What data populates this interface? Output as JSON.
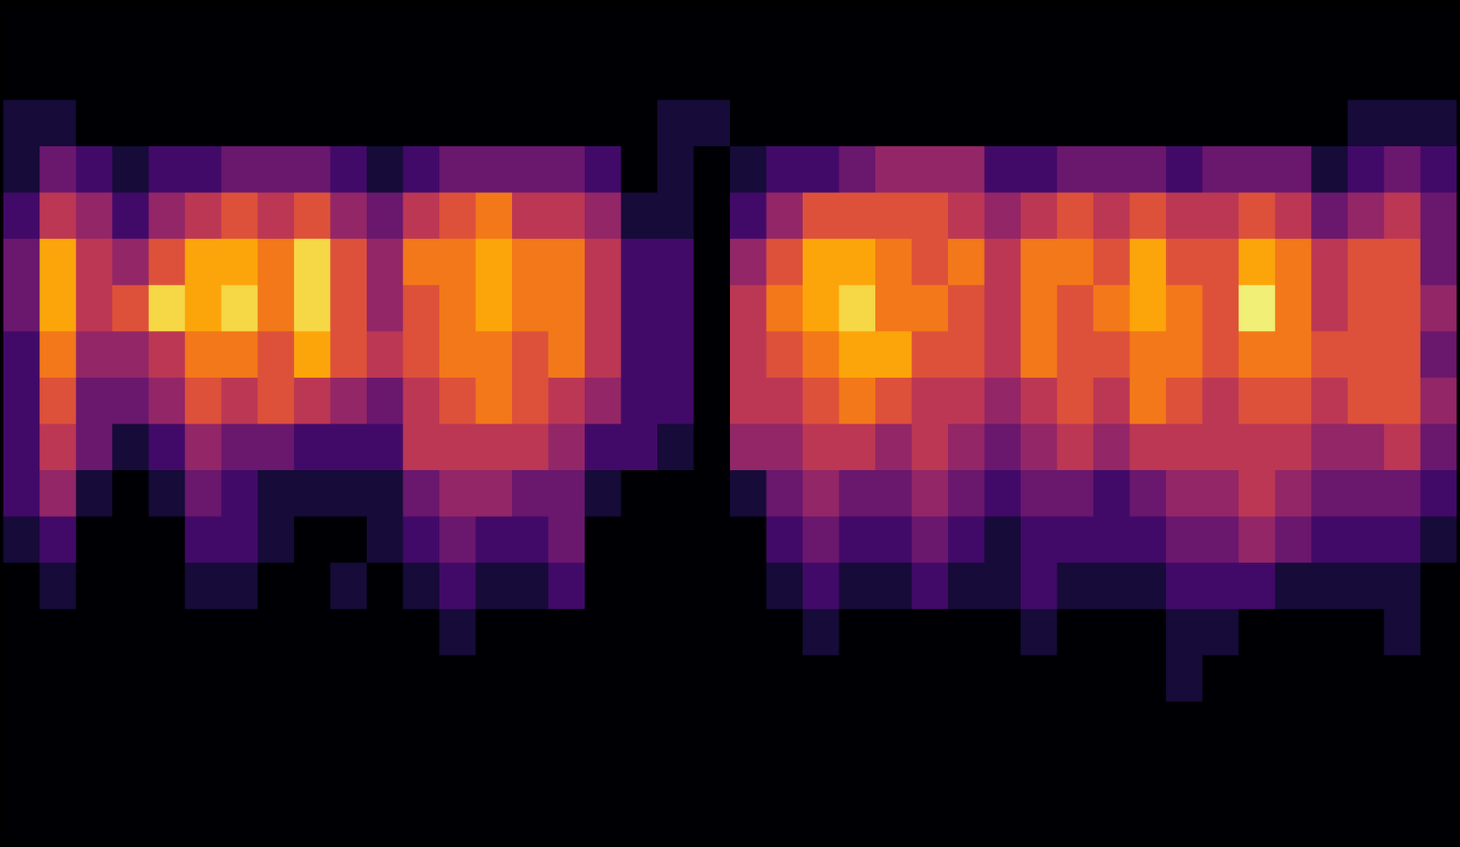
{
  "chart_data": {
    "type": "heatmap",
    "color": "inferno",
    "tick_labels": false,
    "grid": false,
    "zlim": [
      0,
      1
    ],
    "cells": [
      [
        0,
        0,
        0,
        0,
        0,
        0,
        0,
        0,
        0,
        0,
        0,
        0,
        0,
        0,
        0,
        0,
        0,
        0,
        0,
        0,
        0,
        0,
        0,
        0,
        0,
        0,
        0,
        0,
        0,
        0,
        0,
        0,
        0,
        0,
        0,
        0,
        0,
        0,
        0,
        0
      ],
      [
        0,
        0,
        0,
        0,
        0,
        0,
        0,
        0,
        0,
        0,
        0,
        0,
        0,
        0,
        0,
        0,
        0,
        0,
        0,
        0,
        0,
        0,
        0,
        0,
        0,
        0,
        0,
        0,
        0,
        0,
        0,
        0,
        0,
        0,
        0,
        0,
        0,
        0,
        0,
        0
      ],
      [
        0.1,
        0.1,
        0,
        0,
        0,
        0,
        0,
        0,
        0,
        0,
        0,
        0,
        0,
        0,
        0,
        0,
        0,
        0,
        0.1,
        0.1,
        0,
        0,
        0,
        0,
        0,
        0,
        0,
        0,
        0,
        0,
        0,
        0,
        0,
        0,
        0,
        0,
        0,
        0.1,
        0.1,
        0.1
      ],
      [
        0.1,
        0.3,
        0.2,
        0.1,
        0.2,
        0.2,
        0.3,
        0.3,
        0.3,
        0.2,
        0.1,
        0.2,
        0.3,
        0.3,
        0.3,
        0.3,
        0.2,
        0,
        0.1,
        0,
        0.1,
        0.2,
        0.2,
        0.3,
        0.4,
        0.4,
        0.4,
        0.2,
        0.2,
        0.3,
        0.3,
        0.3,
        0.2,
        0.3,
        0.3,
        0.3,
        0.1,
        0.2,
        0.3,
        0.2
      ],
      [
        0.2,
        0.5,
        0.4,
        0.2,
        0.4,
        0.5,
        0.6,
        0.5,
        0.6,
        0.4,
        0.3,
        0.5,
        0.6,
        0.7,
        0.5,
        0.5,
        0.4,
        0.1,
        0.1,
        0,
        0.2,
        0.4,
        0.6,
        0.6,
        0.6,
        0.6,
        0.5,
        0.4,
        0.5,
        0.6,
        0.5,
        0.6,
        0.5,
        0.5,
        0.6,
        0.5,
        0.3,
        0.4,
        0.5,
        0.3
      ],
      [
        0.3,
        0.8,
        0.5,
        0.4,
        0.6,
        0.8,
        0.8,
        0.7,
        0.9,
        0.6,
        0.4,
        0.7,
        0.7,
        0.8,
        0.7,
        0.7,
        0.5,
        0.2,
        0.2,
        0,
        0.4,
        0.6,
        0.8,
        0.8,
        0.7,
        0.6,
        0.7,
        0.5,
        0.7,
        0.7,
        0.6,
        0.8,
        0.6,
        0.6,
        0.8,
        0.7,
        0.5,
        0.6,
        0.6,
        0.3
      ],
      [
        0.3,
        0.8,
        0.5,
        0.6,
        0.9,
        0.8,
        0.9,
        0.7,
        0.9,
        0.6,
        0.4,
        0.6,
        0.7,
        0.8,
        0.7,
        0.7,
        0.5,
        0.2,
        0.2,
        0,
        0.5,
        0.7,
        0.8,
        0.9,
        0.7,
        0.7,
        0.6,
        0.5,
        0.7,
        0.6,
        0.7,
        0.8,
        0.7,
        0.6,
        0.95,
        0.7,
        0.5,
        0.6,
        0.6,
        0.4
      ],
      [
        0.2,
        0.7,
        0.4,
        0.4,
        0.5,
        0.7,
        0.7,
        0.6,
        0.8,
        0.6,
        0.5,
        0.6,
        0.7,
        0.7,
        0.6,
        0.7,
        0.5,
        0.2,
        0.2,
        0,
        0.5,
        0.6,
        0.7,
        0.8,
        0.8,
        0.6,
        0.6,
        0.5,
        0.7,
        0.6,
        0.6,
        0.7,
        0.7,
        0.6,
        0.7,
        0.7,
        0.6,
        0.6,
        0.6,
        0.3
      ],
      [
        0.2,
        0.6,
        0.3,
        0.3,
        0.4,
        0.6,
        0.5,
        0.6,
        0.5,
        0.4,
        0.3,
        0.5,
        0.6,
        0.7,
        0.6,
        0.5,
        0.4,
        0.2,
        0.2,
        0,
        0.5,
        0.5,
        0.6,
        0.7,
        0.6,
        0.5,
        0.5,
        0.4,
        0.5,
        0.6,
        0.5,
        0.7,
        0.6,
        0.5,
        0.6,
        0.6,
        0.5,
        0.6,
        0.6,
        0.4
      ],
      [
        0.2,
        0.5,
        0.3,
        0.1,
        0.2,
        0.4,
        0.3,
        0.3,
        0.2,
        0.2,
        0.2,
        0.5,
        0.5,
        0.5,
        0.5,
        0.4,
        0.2,
        0.2,
        0.1,
        0,
        0.4,
        0.4,
        0.5,
        0.5,
        0.4,
        0.5,
        0.4,
        0.3,
        0.4,
        0.5,
        0.4,
        0.5,
        0.5,
        0.5,
        0.5,
        0.5,
        0.4,
        0.4,
        0.5,
        0.3
      ],
      [
        0.2,
        0.4,
        0.1,
        0,
        0.1,
        0.3,
        0.2,
        0.1,
        0.1,
        0.1,
        0.1,
        0.3,
        0.4,
        0.4,
        0.3,
        0.3,
        0.1,
        0,
        0,
        0,
        0.1,
        0.3,
        0.4,
        0.3,
        0.3,
        0.4,
        0.3,
        0.2,
        0.3,
        0.3,
        0.2,
        0.3,
        0.4,
        0.4,
        0.5,
        0.4,
        0.3,
        0.3,
        0.3,
        0.2
      ],
      [
        0.1,
        0.2,
        0,
        0,
        0,
        0.2,
        0.2,
        0.1,
        0,
        0,
        0.1,
        0.2,
        0.3,
        0.2,
        0.2,
        0.3,
        0,
        0,
        0,
        0,
        0,
        0.2,
        0.3,
        0.2,
        0.2,
        0.3,
        0.2,
        0.1,
        0.2,
        0.2,
        0.2,
        0.2,
        0.3,
        0.3,
        0.4,
        0.3,
        0.2,
        0.2,
        0.2,
        0.1
      ],
      [
        0,
        0.1,
        0,
        0,
        0,
        0.1,
        0.1,
        0,
        0,
        0.1,
        0,
        0.1,
        0.2,
        0.1,
        0.1,
        0.2,
        0,
        0,
        0,
        0,
        0,
        0.1,
        0.2,
        0.1,
        0.1,
        0.2,
        0.1,
        0.1,
        0.2,
        0.1,
        0.1,
        0.1,
        0.2,
        0.2,
        0.2,
        0.1,
        0.1,
        0.1,
        0.1,
        0
      ],
      [
        0,
        0,
        0,
        0,
        0,
        0,
        0,
        0,
        0,
        0,
        0,
        0,
        0.1,
        0,
        0,
        0,
        0,
        0,
        0,
        0,
        0,
        0,
        0.1,
        0,
        0,
        0,
        0,
        0,
        0.1,
        0,
        0,
        0,
        0.1,
        0.1,
        0,
        0,
        0,
        0,
        0.1,
        0
      ],
      [
        0,
        0,
        0,
        0,
        0,
        0,
        0,
        0,
        0,
        0,
        0,
        0,
        0,
        0,
        0,
        0,
        0,
        0,
        0,
        0,
        0,
        0,
        0,
        0,
        0,
        0,
        0,
        0,
        0,
        0,
        0,
        0,
        0.1,
        0,
        0,
        0,
        0,
        0,
        0,
        0
      ],
      [
        0,
        0,
        0,
        0,
        0,
        0,
        0,
        0,
        0,
        0,
        0,
        0,
        0,
        0,
        0,
        0,
        0,
        0,
        0,
        0,
        0,
        0,
        0,
        0,
        0,
        0,
        0,
        0,
        0,
        0,
        0,
        0,
        0,
        0,
        0,
        0,
        0,
        0,
        0,
        0
      ],
      [
        0,
        0,
        0,
        0,
        0,
        0,
        0,
        0,
        0,
        0,
        0,
        0,
        0,
        0,
        0,
        0,
        0,
        0,
        0,
        0,
        0,
        0,
        0,
        0,
        0,
        0,
        0,
        0,
        0,
        0,
        0,
        0,
        0,
        0,
        0,
        0,
        0,
        0,
        0,
        0
      ],
      [
        0,
        0,
        0,
        0,
        0,
        0,
        0,
        0,
        0,
        0,
        0,
        0,
        0,
        0,
        0,
        0,
        0,
        0,
        0,
        0,
        0,
        0,
        0,
        0,
        0,
        0,
        0,
        0,
        0,
        0,
        0,
        0,
        0,
        0,
        0,
        0,
        0,
        0,
        0,
        0
      ]
    ]
  }
}
